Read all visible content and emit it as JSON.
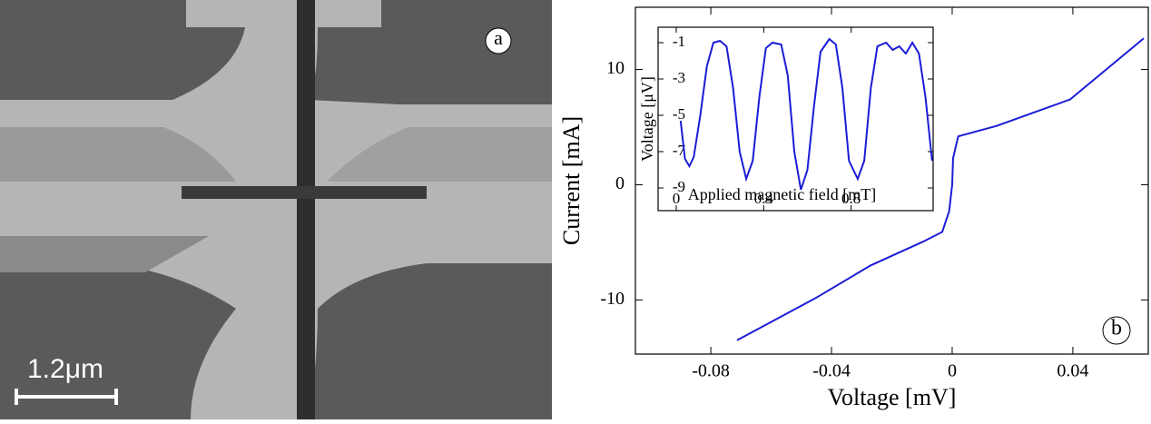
{
  "panel_a": {
    "label": "a",
    "scale_bar": "1.2μm"
  },
  "chart_data": [
    {
      "type": "line",
      "panel_label": "b",
      "x_label": "Voltage [mV]",
      "y_label": "Current [mA]",
      "xlim": [
        -0.105,
        0.065
      ],
      "ylim": [
        -14.7,
        15.4
      ],
      "xticks": [
        -0.08,
        -0.04,
        0,
        0.04
      ],
      "yticks": [
        -10,
        0,
        10
      ],
      "series": [
        {
          "color": "#1c1cd6",
          "x": [
            -0.0713,
            -0.045,
            -0.027,
            -0.0093,
            -0.0033,
            -0.001,
            0,
            0.0003,
            0.002,
            0.0147,
            0.0391,
            0.0635
          ],
          "values": [
            -13.5,
            -9.8,
            -7.0,
            -4.9,
            -4.1,
            -2.3,
            0,
            2.3,
            4.2,
            5.1,
            7.4,
            12.7
          ]
        }
      ]
    },
    {
      "type": "line",
      "x_label": "Applied magnetic field [mT]",
      "y_label": "Voltage [μV]",
      "xlim": [
        -0.083,
        1.175
      ],
      "ylim": [
        -10.25,
        -0.15
      ],
      "xticks": [
        0,
        0.4,
        0.8
      ],
      "yticks": [
        -1,
        -3,
        -5,
        -7,
        -9
      ],
      "series": [
        {
          "color": "#1c1cd6",
          "x": [
            0.02,
            0.04,
            0.06,
            0.08,
            0.11,
            0.14,
            0.17,
            0.2,
            0.23,
            0.26,
            0.29,
            0.32,
            0.35,
            0.38,
            0.41,
            0.44,
            0.48,
            0.51,
            0.54,
            0.57,
            0.6,
            0.63,
            0.66,
            0.7,
            0.73,
            0.76,
            0.79,
            0.83,
            0.86,
            0.89,
            0.92,
            0.96,
            0.99,
            1.02,
            1.05,
            1.08,
            1.11,
            1.14,
            1.17
          ],
          "values": [
            -5.3,
            -7.4,
            -7.8,
            -7.3,
            -5,
            -2.3,
            -1.0,
            -0.9,
            -1.2,
            -3.5,
            -7,
            -8.5,
            -7.5,
            -4,
            -1.3,
            -1.0,
            -1.1,
            -2.8,
            -7,
            -9.1,
            -8,
            -4.5,
            -1.5,
            -0.8,
            -1.1,
            -3.5,
            -7.5,
            -8.5,
            -7.5,
            -3.5,
            -1.2,
            -1.0,
            -1.4,
            -1.2,
            -1.6,
            -1.0,
            -1.6,
            -4,
            -7.5
          ]
        }
      ]
    }
  ]
}
